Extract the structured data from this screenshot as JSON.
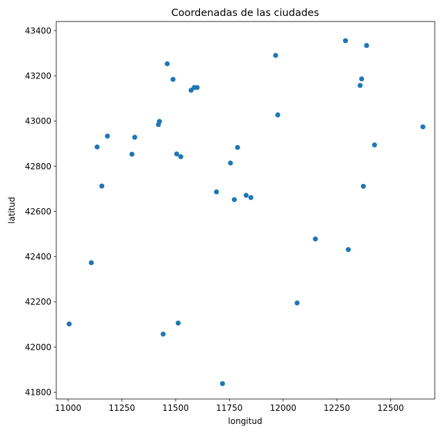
{
  "chart_data": {
    "type": "scatter",
    "title": "Coordenadas de las ciudades",
    "xlabel": "longitud",
    "ylabel": "latitud",
    "xlim": [
      10945,
      12705
    ],
    "ylim": [
      41770,
      43440
    ],
    "xticks": [
      11000,
      11250,
      11500,
      11750,
      12000,
      12250,
      12500
    ],
    "yticks": [
      41800,
      42000,
      42200,
      42400,
      42600,
      42800,
      43000,
      43200,
      43400
    ],
    "grid": false,
    "marker_color": "#1f77b4",
    "points": [
      {
        "x": 11005,
        "y": 42102
      },
      {
        "x": 11108,
        "y": 42373
      },
      {
        "x": 11135,
        "y": 42885
      },
      {
        "x": 11157,
        "y": 42712
      },
      {
        "x": 11183,
        "y": 42933
      },
      {
        "x": 11297,
        "y": 42853
      },
      {
        "x": 11310,
        "y": 42928
      },
      {
        "x": 11420,
        "y": 42984
      },
      {
        "x": 11425,
        "y": 42998
      },
      {
        "x": 11442,
        "y": 42057
      },
      {
        "x": 11461,
        "y": 43253
      },
      {
        "x": 11488,
        "y": 43184
      },
      {
        "x": 11505,
        "y": 42854
      },
      {
        "x": 11512,
        "y": 42106
      },
      {
        "x": 11524,
        "y": 42842
      },
      {
        "x": 11572,
        "y": 43136
      },
      {
        "x": 11587,
        "y": 43148
      },
      {
        "x": 11600,
        "y": 43148
      },
      {
        "x": 11690,
        "y": 42686
      },
      {
        "x": 11718,
        "y": 41838
      },
      {
        "x": 11755,
        "y": 42814
      },
      {
        "x": 11773,
        "y": 42652
      },
      {
        "x": 11788,
        "y": 42883
      },
      {
        "x": 11828,
        "y": 42671
      },
      {
        "x": 11850,
        "y": 42661
      },
      {
        "x": 11965,
        "y": 43290
      },
      {
        "x": 11975,
        "y": 43027
      },
      {
        "x": 12065,
        "y": 42195
      },
      {
        "x": 12150,
        "y": 42478
      },
      {
        "x": 12290,
        "y": 43355
      },
      {
        "x": 12303,
        "y": 42431
      },
      {
        "x": 12358,
        "y": 43157
      },
      {
        "x": 12365,
        "y": 43186
      },
      {
        "x": 12373,
        "y": 42711
      },
      {
        "x": 12388,
        "y": 43334
      },
      {
        "x": 12425,
        "y": 42894
      },
      {
        "x": 12650,
        "y": 42974
      }
    ]
  }
}
